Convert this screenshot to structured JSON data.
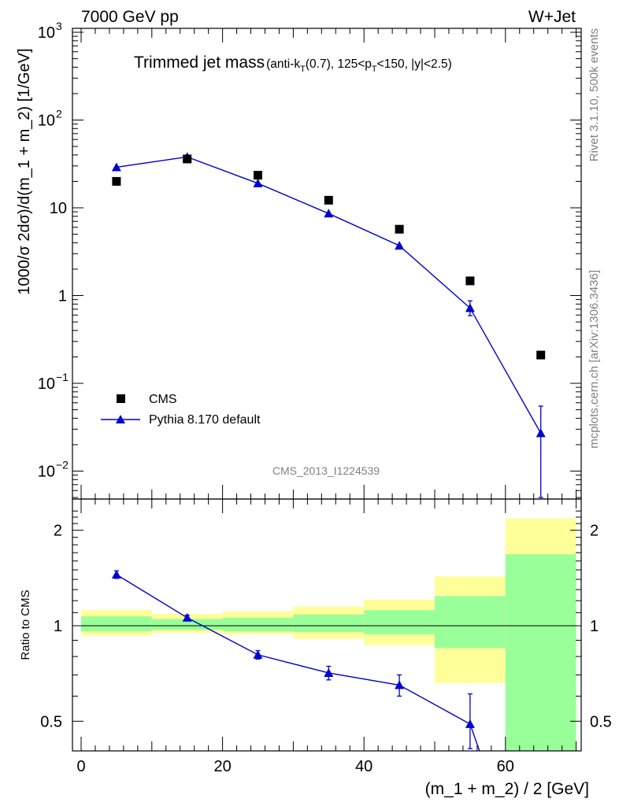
{
  "header": {
    "energy_label": "7000 GeV pp",
    "process_label": "W+Jet",
    "title_main": "Trimmed jet mass",
    "title_detail": "(anti-k_T(0.7), 125<p_T<150, |y|<2.5)",
    "analysis_id": "CMS_2013_I1224539",
    "side_label_top": "Rivet 3.1.10,  500k events",
    "side_label_bottom": "mcplots.cern.ch [arXiv:1306.3436]"
  },
  "legend": {
    "data_label": "CMS",
    "mc_label": "Pythia 8.170 default"
  },
  "axes": {
    "ylabel_main": "1000/σ 2dσ)/d(m_1 + m_2) [1/GeV]",
    "ylabel_ratio": "Ratio to CMS",
    "xlabel": "(m_1 + m_2) / 2 [GeV]",
    "x_ticks": [
      "0",
      "20",
      "40",
      "60"
    ],
    "ratio_ticks": [
      "0.5",
      "1",
      "2"
    ]
  },
  "colors": {
    "data": "#000000",
    "mc": "#0000d0",
    "band_outer": "#ffff99",
    "band_inner": "#99ff99"
  },
  "chart_data": [
    {
      "type": "scatter",
      "title": "Trimmed jet mass",
      "xlabel": "(m_1 + m_2) / 2 [GeV]",
      "ylabel": "1000/σ 2dσ)/d(m_1 + m_2) [1/GeV]",
      "xlim": [
        -2.5,
        72.5
      ],
      "ylim": [
        0.005,
        1200
      ],
      "yscale": "log",
      "series": [
        {
          "name": "CMS",
          "marker": "square",
          "x": [
            5,
            15,
            25,
            35,
            45,
            55,
            65
          ],
          "y": [
            20,
            36,
            23.5,
            12.2,
            5.7,
            1.47,
            0.21
          ]
        },
        {
          "name": "Pythia 8.170 default",
          "marker": "triangle",
          "x": [
            5,
            15,
            25,
            35,
            45,
            55,
            65
          ],
          "y": [
            29,
            38,
            19,
            8.6,
            3.7,
            0.72,
            0.027
          ],
          "err_lo": [
            0,
            0,
            0,
            0,
            0,
            0.13,
            0.022
          ],
          "err_hi": [
            0,
            0,
            0,
            0,
            0,
            0.15,
            0.028
          ]
        }
      ]
    },
    {
      "type": "line",
      "title": "",
      "xlabel": "(m_1 + m_2) / 2 [GeV]",
      "ylabel": "Ratio to CMS",
      "xlim": [
        -2.5,
        72.5
      ],
      "ylim": [
        0.35,
        2.4
      ],
      "yscale": "log",
      "bands": {
        "x_edges": [
          0,
          10,
          20,
          30,
          40,
          50,
          60,
          70
        ],
        "outer_lo": [
          0.93,
          0.95,
          0.94,
          0.91,
          0.87,
          0.66,
          0.35
        ],
        "outer_hi": [
          1.12,
          1.09,
          1.11,
          1.15,
          1.21,
          1.43,
          2.18
        ],
        "inner_lo": [
          0.96,
          0.97,
          0.96,
          0.955,
          0.94,
          0.85,
          0.35
        ],
        "inner_hi": [
          1.07,
          1.05,
          1.06,
          1.085,
          1.12,
          1.24,
          1.68
        ]
      },
      "series": [
        {
          "name": "Pythia 8.170 default",
          "x": [
            5,
            15,
            25,
            35,
            45,
            55
          ],
          "y": [
            1.45,
            1.06,
            0.81,
            0.71,
            0.65,
            0.49
          ],
          "err_lo": [
            0.04,
            0.02,
            0.025,
            0.035,
            0.05,
            0.08
          ],
          "err_hi": [
            0.04,
            0.02,
            0.025,
            0.035,
            0.05,
            0.12
          ]
        }
      ]
    }
  ]
}
